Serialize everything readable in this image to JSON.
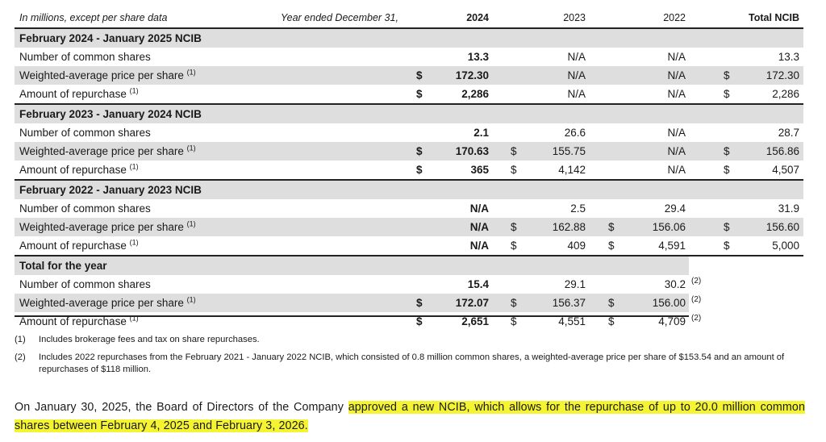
{
  "header": {
    "units_note": "In millions, except per share data",
    "year_note": "Year ended December 31,",
    "col_2024": "2024",
    "col_2023": "2023",
    "col_2022": "2022",
    "col_total": "Total NCIB"
  },
  "sections": [
    {
      "title": "February 2024 - January 2025 NCIB",
      "rows": [
        {
          "label": "Number of common shares",
          "sup": "",
          "d24": "",
          "v24": "13.3",
          "d23": "",
          "v23": "N/A",
          "d22": "",
          "v22": "N/A",
          "dtot": "",
          "vtot": "13.3"
        },
        {
          "label": "Weighted-average price per share",
          "sup": "(1)",
          "d24": "$",
          "v24": "172.30",
          "d23": "",
          "v23": "N/A",
          "d22": "",
          "v22": "N/A",
          "dtot": "$",
          "vtot": "172.30"
        },
        {
          "label": "Amount of repurchase",
          "sup": "(1)",
          "d24": "$",
          "v24": "2,286",
          "d23": "",
          "v23": "N/A",
          "d22": "",
          "v22": "N/A",
          "dtot": "$",
          "vtot": "2,286"
        }
      ]
    },
    {
      "title": "February 2023 - January 2024 NCIB",
      "rows": [
        {
          "label": "Number of common shares",
          "sup": "",
          "d24": "",
          "v24": "2.1",
          "d23": "",
          "v23": "26.6",
          "d22": "",
          "v22": "N/A",
          "dtot": "",
          "vtot": "28.7"
        },
        {
          "label": "Weighted-average price per share",
          "sup": "(1)",
          "d24": "$",
          "v24": "170.63",
          "d23": "$",
          "v23": "155.75",
          "d22": "",
          "v22": "N/A",
          "dtot": "$",
          "vtot": "156.86"
        },
        {
          "label": "Amount of repurchase",
          "sup": "(1)",
          "d24": "$",
          "v24": "365",
          "d23": "$",
          "v23": "4,142",
          "d22": "",
          "v22": "N/A",
          "dtot": "$",
          "vtot": "4,507"
        }
      ]
    },
    {
      "title": "February 2022 - January 2023 NCIB",
      "rows": [
        {
          "label": "Number of common shares",
          "sup": "",
          "d24": "",
          "v24": "N/A",
          "d23": "",
          "v23": "2.5",
          "d22": "",
          "v22": "29.4",
          "dtot": "",
          "vtot": "31.9"
        },
        {
          "label": "Weighted-average price per share",
          "sup": "(1)",
          "d24": "",
          "v24": "N/A",
          "d23": "$",
          "v23": "162.88",
          "d22": "$",
          "v22": "156.06",
          "dtot": "$",
          "vtot": "156.60"
        },
        {
          "label": "Amount of repurchase",
          "sup": "(1)",
          "d24": "",
          "v24": "N/A",
          "d23": "$",
          "v23": "409",
          "d22": "$",
          "v22": "4,591",
          "dtot": "$",
          "vtot": "5,000"
        }
      ]
    }
  ],
  "total": {
    "title": "Total for the year",
    "rows": [
      {
        "label": "Number of common shares",
        "sup": "",
        "d24": "",
        "v24": "15.4",
        "d23": "",
        "v23": "29.1",
        "d22": "",
        "v22": "30.2",
        "fn": "(2)"
      },
      {
        "label": "Weighted-average price per share",
        "sup": "(1)",
        "d24": "$",
        "v24": "172.07",
        "d23": "$",
        "v23": "156.37",
        "d22": "$",
        "v22": "156.00",
        "fn": "(2)"
      },
      {
        "label": "Amount of repurchase",
        "sup": "(1)",
        "d24": "$",
        "v24": "2,651",
        "d23": "$",
        "v23": "4,551",
        "d22": "$",
        "v22": "4,709",
        "fn": "(2)"
      }
    ]
  },
  "footnotes": [
    {
      "num": "(1)",
      "text": "Includes brokerage fees and tax on share repurchases."
    },
    {
      "num": "(2)",
      "text": "Includes 2022 repurchases from the February 2021 - January 2022 NCIB, which consisted of 0.8 million common shares, a weighted-average price per share of $153.54 and an amount of repurchases of $118 million."
    }
  ],
  "paragraph": {
    "plain": "On January 30, 2025, the Board of Directors of the Company ",
    "highlighted": "approved a new NCIB, which allows for the repurchase of up to 20.0 million common shares between February 4, 2025 and February 3, 2026."
  },
  "colors": {
    "shade": "#dedede",
    "highlight": "#f4f433",
    "rule": "#222222"
  }
}
